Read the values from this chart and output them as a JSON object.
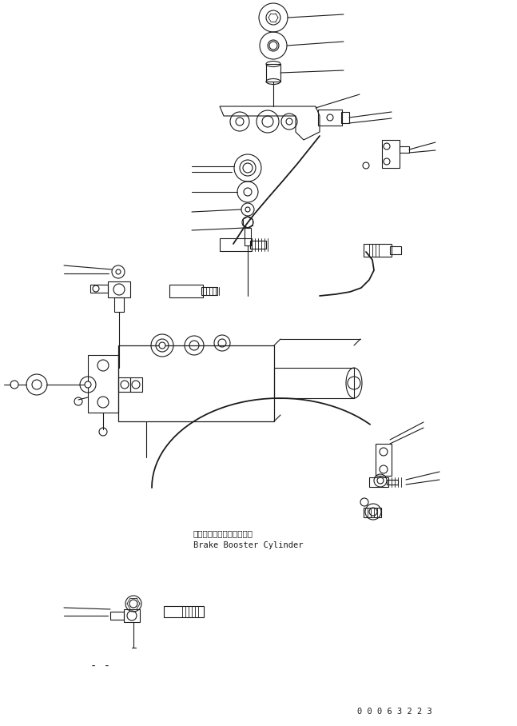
{
  "figsize": [
    6.47,
    9.08
  ],
  "dpi": 100,
  "bg_color": "#ffffff",
  "lc": "#1a1a1a",
  "lw": 0.8,
  "part_label": "Brake Booster Cylinder",
  "part_label_jp": "ブレーキブースタシリンダ",
  "watermark": "0 0 0 6 3 2 2 3"
}
